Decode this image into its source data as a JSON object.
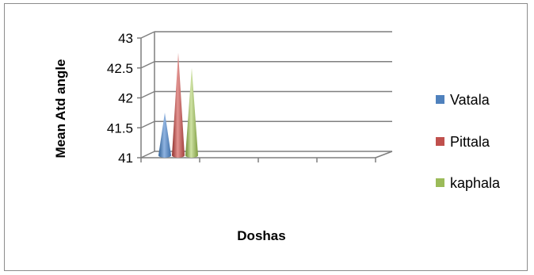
{
  "chart_data": {
    "type": "bar",
    "bar_shape": "cone",
    "three_d": true,
    "title": "",
    "xlabel": "Doshas",
    "ylabel": "Mean Atd angle",
    "ylim": [
      41,
      43
    ],
    "y_ticks": [
      "41",
      "41.5",
      "42",
      "42.5",
      "43"
    ],
    "categories": [
      ""
    ],
    "series": [
      {
        "name": "Vatala",
        "values": [
          41.7
        ],
        "color": "#4f81bd"
      },
      {
        "name": "Pittala",
        "values": [
          42.7
        ],
        "color": "#c0504d"
      },
      {
        "name": "kaphala",
        "values": [
          42.45
        ],
        "color": "#9bbb59"
      }
    ],
    "grid": true,
    "legend_position": "right"
  }
}
